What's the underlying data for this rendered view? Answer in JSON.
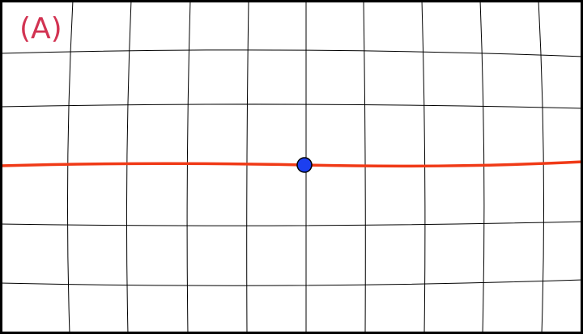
{
  "panel": {
    "label": "(A)"
  }
}
